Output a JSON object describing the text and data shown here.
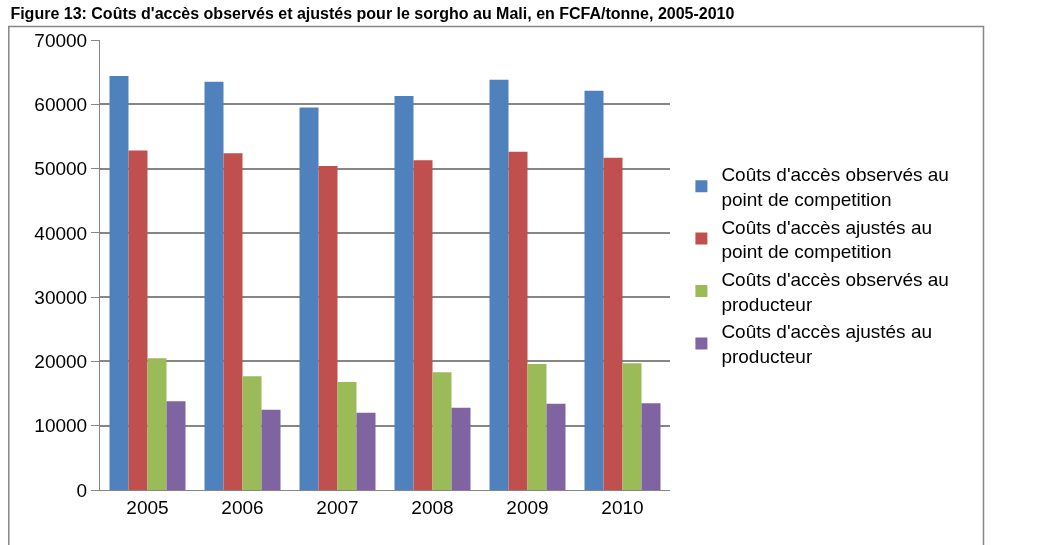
{
  "chart_data": {
    "type": "bar",
    "title": "Figure 13: Coûts d'accès observés et ajustés pour le sorgho au Mali, en FCFA/tonne, 2005-2010",
    "categories": [
      "2005",
      "2006",
      "2007",
      "2008",
      "2009",
      "2010"
    ],
    "series": [
      {
        "name": "Coûts d'accès observés au point de competition",
        "color": "#4f81bd",
        "values": [
          64400,
          63500,
          59500,
          61300,
          63800,
          62100
        ]
      },
      {
        "name": "Coûts d'accès ajustés au point de competition",
        "color": "#c0504d",
        "values": [
          52800,
          52400,
          50400,
          51300,
          52600,
          51700
        ]
      },
      {
        "name": "Coûts d'accès observés au producteur",
        "color": "#9bbb59",
        "values": [
          20500,
          17700,
          16800,
          18300,
          19600,
          19700
        ]
      },
      {
        "name": "Coûts d'accès ajustés au producteur",
        "color": "#8064a2",
        "values": [
          13800,
          12500,
          12000,
          12800,
          13400,
          13500
        ]
      }
    ],
    "ylim": [
      0,
      70000
    ],
    "yticks": [
      0,
      10000,
      20000,
      30000,
      40000,
      50000,
      60000,
      70000
    ],
    "grid": "y",
    "legend": "right"
  }
}
